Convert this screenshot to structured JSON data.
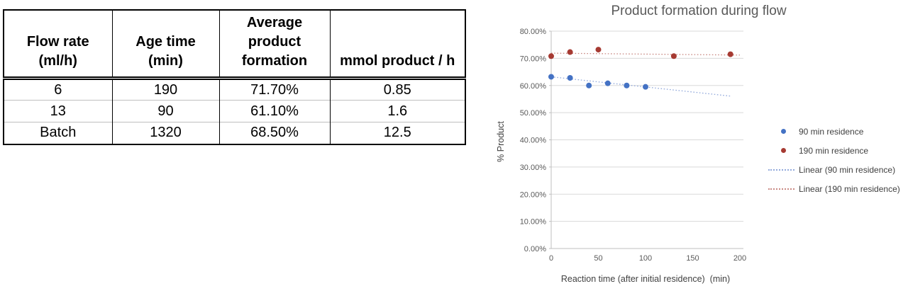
{
  "table": {
    "headers": [
      "Flow rate\n(ml/h)",
      "Age time\n(min)",
      "Average\nproduct\nformation",
      "mmol product / h"
    ],
    "rows": [
      [
        "6",
        "190",
        "71.70%",
        "0.85"
      ],
      [
        "13",
        "90",
        "61.10%",
        "1.6"
      ],
      [
        "Batch",
        "1320",
        "68.50%",
        "12.5"
      ]
    ]
  },
  "chart_data": {
    "type": "scatter",
    "title": "Product formation during flow",
    "xlabel": "Reaction time (after initial residence)  (min)",
    "ylabel": "% Product",
    "xlim": [
      0,
      200
    ],
    "ylim": [
      0,
      80
    ],
    "grid": true,
    "legend_position": "right",
    "x_ticks": [
      0,
      50,
      100,
      150,
      200
    ],
    "y_ticks": [
      0,
      10,
      20,
      30,
      40,
      50,
      60,
      70,
      80
    ],
    "y_tick_labels": [
      "0.00%",
      "10.00%",
      "20.00%",
      "30.00%",
      "40.00%",
      "50.00%",
      "60.00%",
      "70.00%",
      "80.00%"
    ],
    "colors": {
      "grid": "#D9D9D9",
      "axis": "#BFBFBF",
      "tick_text": "#595959",
      "title_text": "#595959",
      "axis_title_text": "#404040"
    },
    "series": [
      {
        "name": "90 min residence",
        "color": "#4472C4",
        "marker": "circle",
        "points": [
          [
            0,
            63.2
          ],
          [
            20,
            62.8
          ],
          [
            40,
            60.0
          ],
          [
            60,
            60.8
          ],
          [
            80,
            60.0
          ],
          [
            100,
            59.5
          ]
        ]
      },
      {
        "name": "190 min residence",
        "color": "#A63A32",
        "marker": "circle",
        "points": [
          [
            0,
            70.8
          ],
          [
            20,
            72.3
          ],
          [
            50,
            73.2
          ],
          [
            130,
            70.8
          ],
          [
            190,
            71.5
          ]
        ]
      }
    ],
    "trendlines": [
      {
        "name": "Linear (90 min residence)",
        "color": "#92A9DB",
        "style": "dotted",
        "from": [
          0,
          63.2
        ],
        "to": [
          190,
          56.1
        ]
      },
      {
        "name": "Linear (190 min residence)",
        "color": "#C98983",
        "style": "dotted",
        "from": [
          0,
          71.9
        ],
        "to": [
          200,
          71.2
        ]
      }
    ]
  }
}
